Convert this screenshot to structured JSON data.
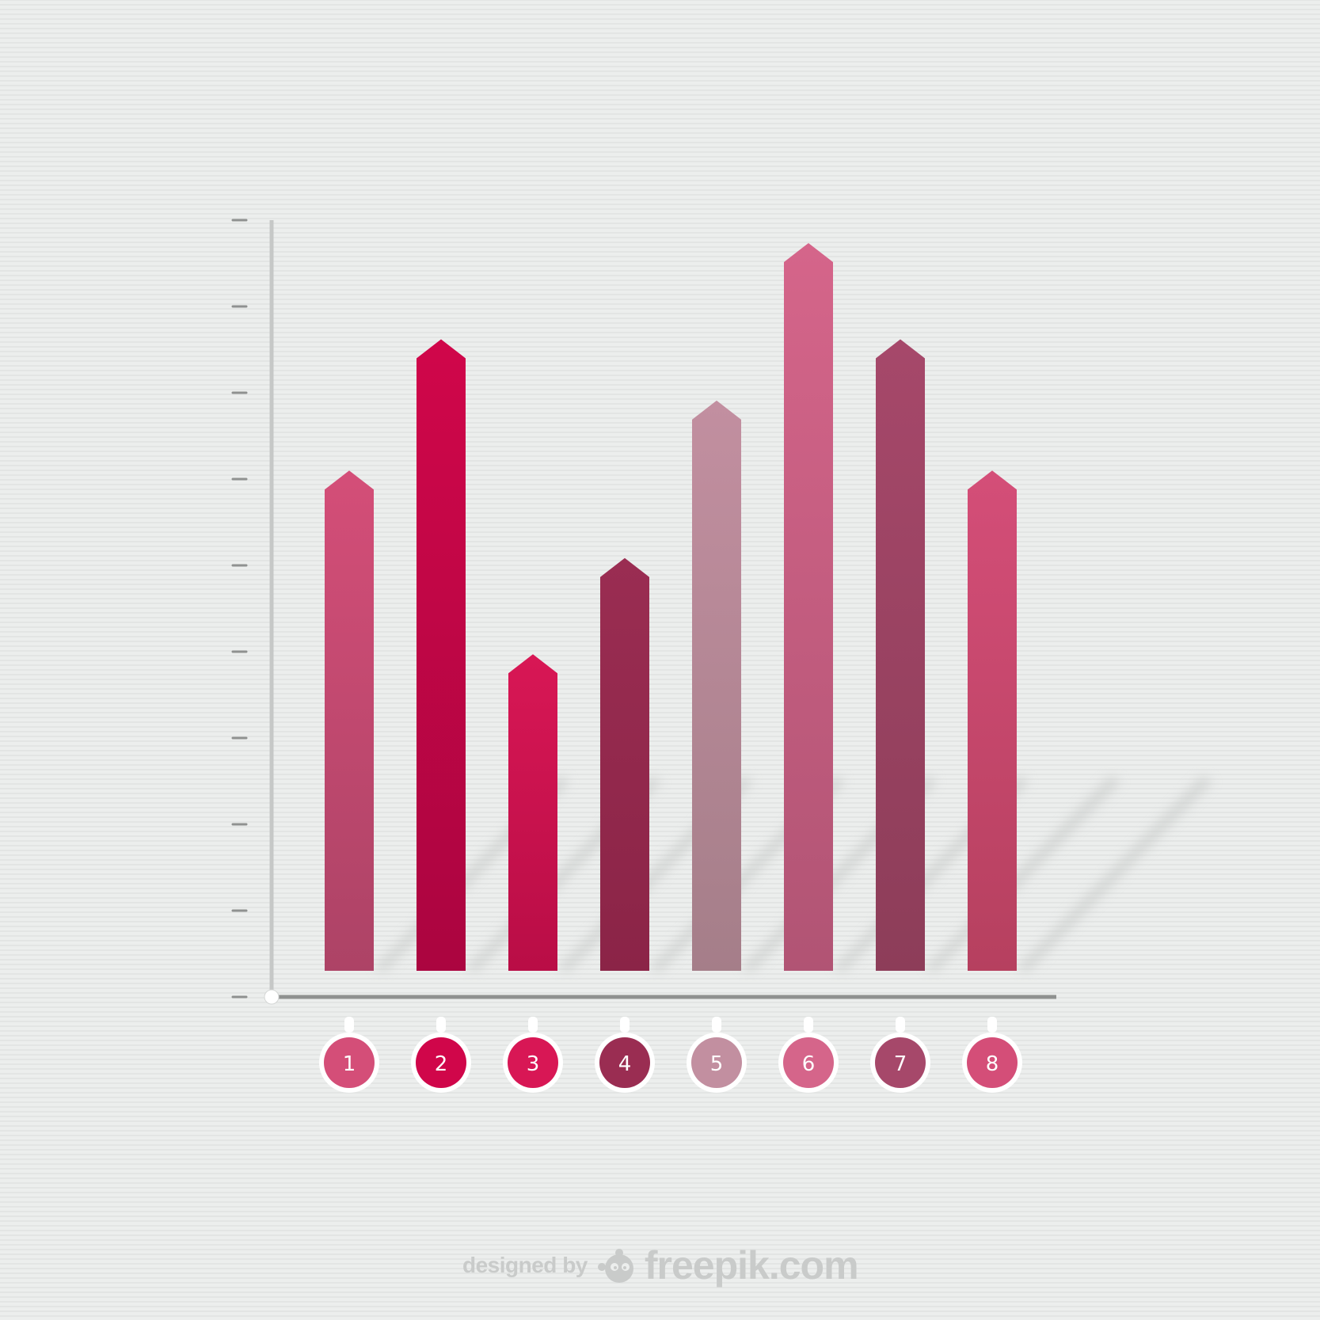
{
  "chart_data": {
    "type": "bar",
    "categories": [
      "1",
      "2",
      "3",
      "4",
      "5",
      "6",
      "7",
      "8"
    ],
    "values": [
      5.5,
      7.0,
      3.4,
      4.5,
      6.3,
      8.1,
      7.0,
      5.5
    ],
    "ylim": [
      0,
      9
    ],
    "y_ticks": [
      0,
      1,
      2,
      3,
      4,
      5,
      6,
      7,
      8,
      9
    ],
    "tick_labels_shown": false,
    "grid": false,
    "legend": "none",
    "title": "",
    "xlabel": "",
    "ylabel": "",
    "colors": [
      "#d44e78",
      "#d0064a",
      "#d81755",
      "#9a2d52",
      "#c28fa0",
      "#d5658a",
      "#a6486a",
      "#d44e78"
    ],
    "bottom_colors": [
      "#ad4366",
      "#ab0540",
      "#b90d46",
      "#8b2447",
      "#a57e89",
      "#b15474",
      "#8d3d59",
      "#b6405f"
    ]
  },
  "credit": {
    "prefix": "designed by",
    "brand": "freepik.com",
    "icon": "freepik-mascot-icon",
    "color": "#c9cbca"
  },
  "axis_color": "#8f9190",
  "page_background": "#eceeed"
}
